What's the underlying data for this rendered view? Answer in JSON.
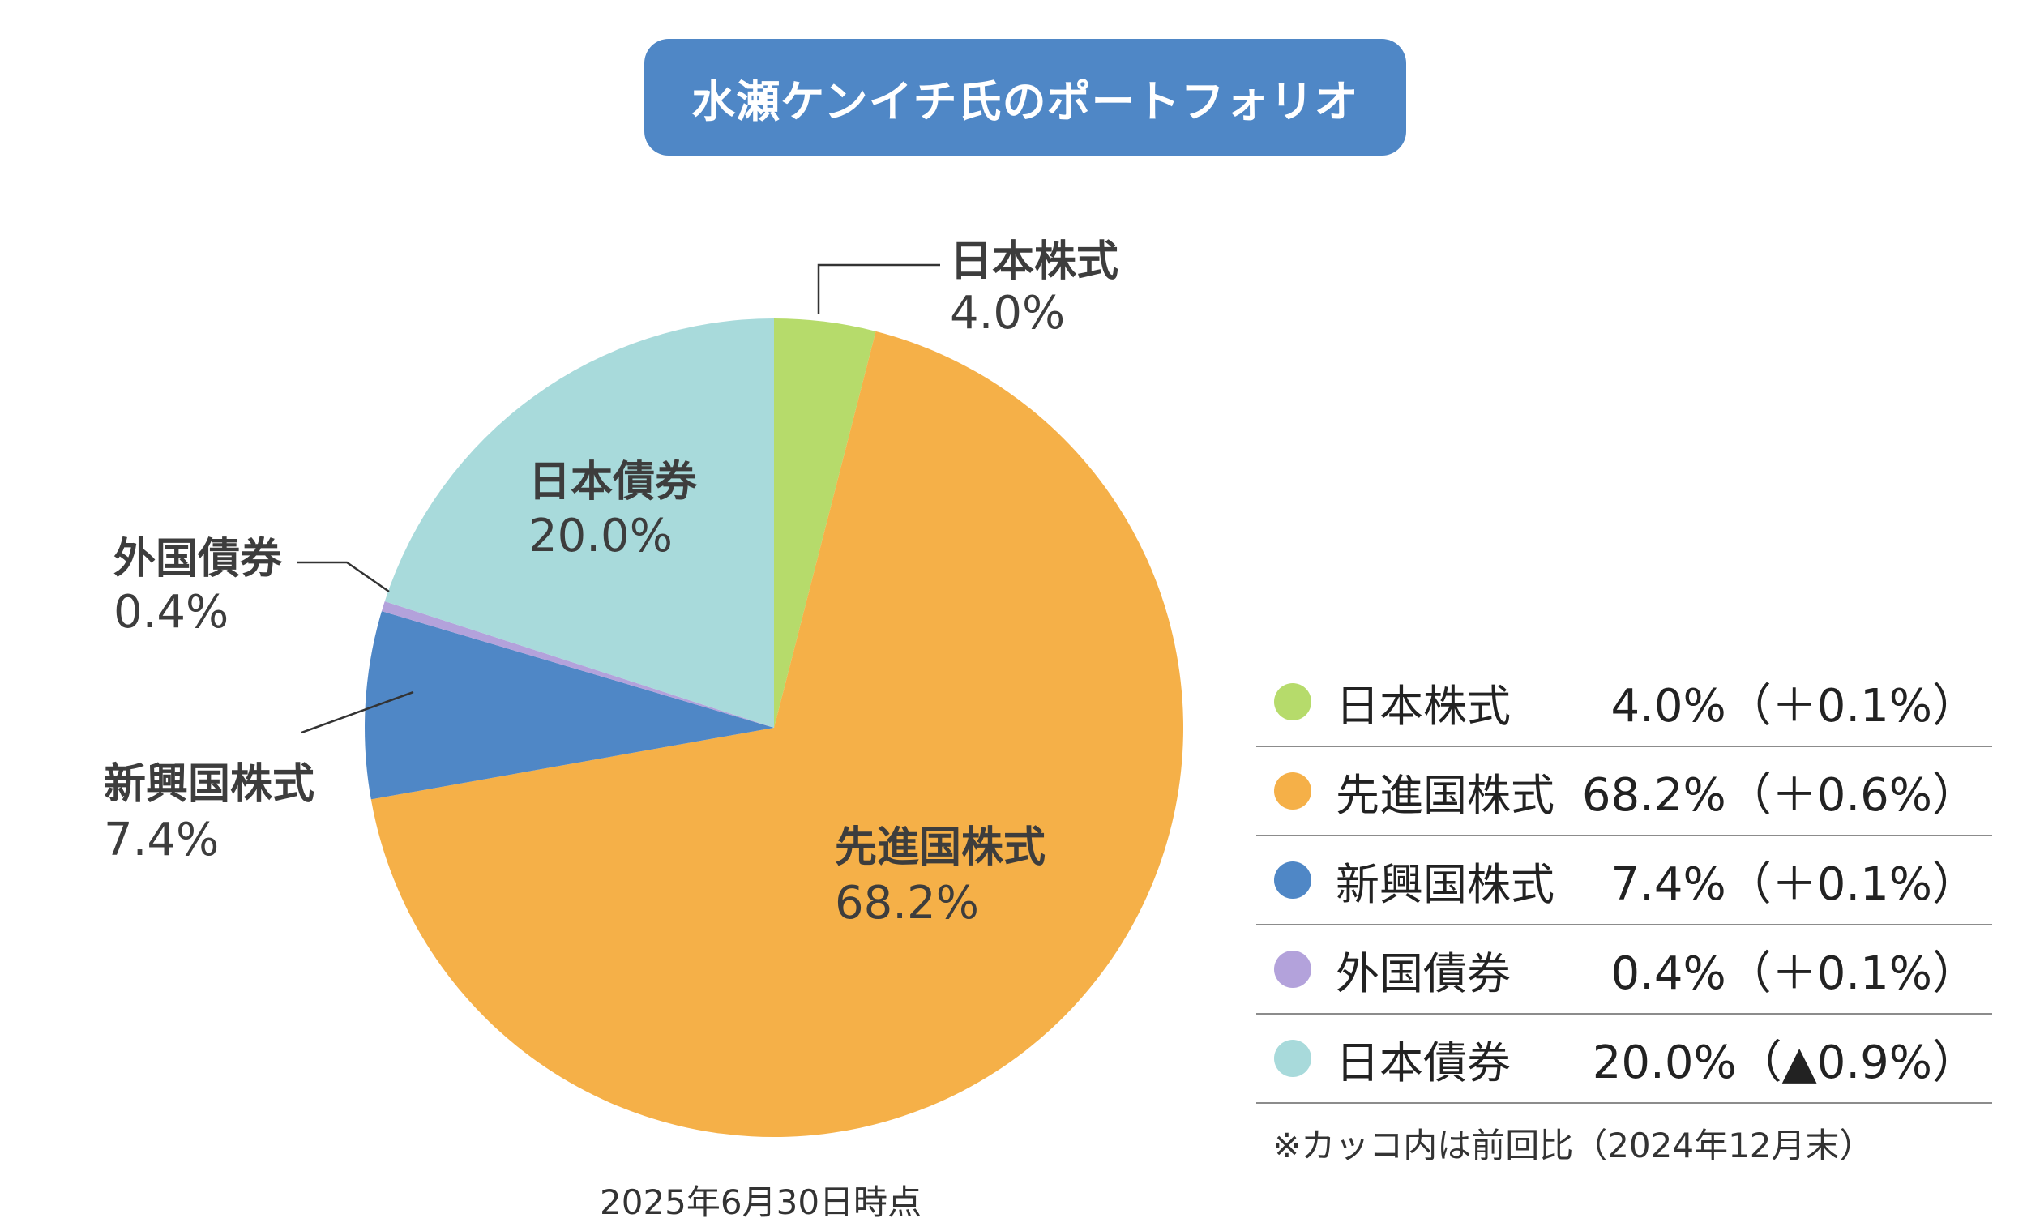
{
  "title": "水瀬ケンイチ氏のポートフォリオ",
  "chart_data": {
    "type": "pie",
    "title": "水瀬ケンイチ氏のポートフォリオ",
    "slices": [
      {
        "label": "日本株式",
        "value": 4.0,
        "display": "4.0%",
        "change": "（＋0.1%）",
        "color": "#B6DB6B"
      },
      {
        "label": "先進国株式",
        "value": 68.2,
        "display": "68.2%",
        "change": "（＋0.6%）",
        "color": "#F5B048"
      },
      {
        "label": "新興国株式",
        "value": 7.4,
        "display": "7.4%",
        "change": "（＋0.1%）",
        "color": "#4F87C6"
      },
      {
        "label": "外国債券",
        "value": 0.4,
        "display": "0.4%",
        "change": "（＋0.1%）",
        "color": "#B3A2DB"
      },
      {
        "label": "日本債券",
        "value": 20.0,
        "display": "20.0%",
        "change": "（▲0.9%）",
        "color": "#A8DADB"
      }
    ]
  },
  "legend": {
    "rows": [
      {
        "name": "日本株式",
        "value": "4.0%（＋0.1%）"
      },
      {
        "name": "先進国株式",
        "value": "68.2%（＋0.6%）"
      },
      {
        "name": "新興国株式",
        "value": "7.4%（＋0.1%）"
      },
      {
        "name": "外国債券",
        "value": "0.4%（＋0.1%）"
      },
      {
        "name": "日本債券",
        "value": "20.0%（▲0.9%）"
      }
    ]
  },
  "footnote": "※カッコ内は前回比（2024年12月末）",
  "date_note": "2025年6月30日時点"
}
